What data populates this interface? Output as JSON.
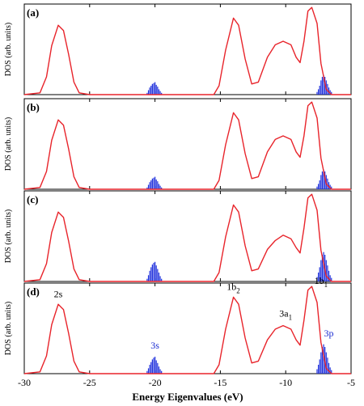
{
  "chart_data": {
    "type": "line",
    "title": "",
    "xlabel": "Energy Eigenvalues (eV)",
    "ylabel": "DOS (arb. units)",
    "xlim": [
      -30,
      -5
    ],
    "x_ticks": [
      "-30",
      "-25",
      "-20",
      "-15",
      "-10",
      "-5"
    ],
    "grid": false,
    "legend": "none",
    "colors": {
      "curve": "#e8242b",
      "bars": "#2233dd",
      "peak_label": "#000000",
      "orbital_label": "#1a2bd1"
    },
    "panels": [
      {
        "label": "(a)",
        "curve": [
          {
            "x": -30.0,
            "y": 0.0
          },
          {
            "x": -28.8,
            "y": 0.02
          },
          {
            "x": -28.3,
            "y": 0.2
          },
          {
            "x": -27.9,
            "y": 0.55
          },
          {
            "x": -27.4,
            "y": 0.78
          },
          {
            "x": -27.0,
            "y": 0.72
          },
          {
            "x": -26.6,
            "y": 0.45
          },
          {
            "x": -26.2,
            "y": 0.14
          },
          {
            "x": -25.8,
            "y": 0.02
          },
          {
            "x": -25.0,
            "y": 0.0
          },
          {
            "x": -15.5,
            "y": 0.0
          },
          {
            "x": -15.1,
            "y": 0.1
          },
          {
            "x": -14.6,
            "y": 0.5
          },
          {
            "x": -14.0,
            "y": 0.86
          },
          {
            "x": -13.6,
            "y": 0.78
          },
          {
            "x": -13.1,
            "y": 0.4
          },
          {
            "x": -12.6,
            "y": 0.12
          },
          {
            "x": -12.1,
            "y": 0.14
          },
          {
            "x": -11.4,
            "y": 0.42
          },
          {
            "x": -10.8,
            "y": 0.56
          },
          {
            "x": -10.2,
            "y": 0.6
          },
          {
            "x": -9.6,
            "y": 0.56
          },
          {
            "x": -9.2,
            "y": 0.42
          },
          {
            "x": -8.9,
            "y": 0.36
          },
          {
            "x": -8.6,
            "y": 0.6
          },
          {
            "x": -8.3,
            "y": 0.94
          },
          {
            "x": -8.0,
            "y": 0.98
          },
          {
            "x": -7.6,
            "y": 0.8
          },
          {
            "x": -7.3,
            "y": 0.35
          },
          {
            "x": -6.9,
            "y": 0.06
          },
          {
            "x": -6.5,
            "y": 0.0
          },
          {
            "x": -5.0,
            "y": 0.0
          }
        ],
        "bars": [
          {
            "x": -20.6,
            "y": 0.02
          },
          {
            "x": -20.5,
            "y": 0.05
          },
          {
            "x": -20.4,
            "y": 0.08
          },
          {
            "x": -20.3,
            "y": 0.1
          },
          {
            "x": -20.2,
            "y": 0.12
          },
          {
            "x": -20.1,
            "y": 0.13
          },
          {
            "x": -20.0,
            "y": 0.14
          },
          {
            "x": -19.9,
            "y": 0.11
          },
          {
            "x": -19.8,
            "y": 0.09
          },
          {
            "x": -19.7,
            "y": 0.06
          },
          {
            "x": -19.6,
            "y": 0.04
          },
          {
            "x": -19.5,
            "y": 0.02
          },
          {
            "x": -7.6,
            "y": 0.03
          },
          {
            "x": -7.5,
            "y": 0.06
          },
          {
            "x": -7.4,
            "y": 0.1
          },
          {
            "x": -7.3,
            "y": 0.16
          },
          {
            "x": -7.2,
            "y": 0.2
          },
          {
            "x": -7.1,
            "y": 0.22
          },
          {
            "x": -7.0,
            "y": 0.2
          },
          {
            "x": -6.9,
            "y": 0.16
          },
          {
            "x": -6.8,
            "y": 0.12
          },
          {
            "x": -6.7,
            "y": 0.08
          },
          {
            "x": -6.6,
            "y": 0.05
          },
          {
            "x": -6.5,
            "y": 0.03
          }
        ]
      },
      {
        "label": "(b)",
        "curve": [
          {
            "x": -30.0,
            "y": 0.0
          },
          {
            "x": -28.8,
            "y": 0.02
          },
          {
            "x": -28.3,
            "y": 0.2
          },
          {
            "x": -27.9,
            "y": 0.55
          },
          {
            "x": -27.4,
            "y": 0.78
          },
          {
            "x": -27.0,
            "y": 0.72
          },
          {
            "x": -26.6,
            "y": 0.45
          },
          {
            "x": -26.2,
            "y": 0.14
          },
          {
            "x": -25.8,
            "y": 0.02
          },
          {
            "x": -25.0,
            "y": 0.0
          },
          {
            "x": -15.5,
            "y": 0.0
          },
          {
            "x": -15.1,
            "y": 0.1
          },
          {
            "x": -14.6,
            "y": 0.5
          },
          {
            "x": -14.0,
            "y": 0.86
          },
          {
            "x": -13.6,
            "y": 0.78
          },
          {
            "x": -13.1,
            "y": 0.4
          },
          {
            "x": -12.6,
            "y": 0.12
          },
          {
            "x": -12.1,
            "y": 0.14
          },
          {
            "x": -11.4,
            "y": 0.42
          },
          {
            "x": -10.8,
            "y": 0.56
          },
          {
            "x": -10.2,
            "y": 0.6
          },
          {
            "x": -9.6,
            "y": 0.56
          },
          {
            "x": -9.2,
            "y": 0.42
          },
          {
            "x": -8.9,
            "y": 0.36
          },
          {
            "x": -8.6,
            "y": 0.6
          },
          {
            "x": -8.3,
            "y": 0.94
          },
          {
            "x": -8.0,
            "y": 0.98
          },
          {
            "x": -7.6,
            "y": 0.8
          },
          {
            "x": -7.3,
            "y": 0.35
          },
          {
            "x": -6.9,
            "y": 0.06
          },
          {
            "x": -6.5,
            "y": 0.0
          },
          {
            "x": -5.0,
            "y": 0.0
          }
        ],
        "bars": [
          {
            "x": -20.6,
            "y": 0.02
          },
          {
            "x": -20.5,
            "y": 0.05
          },
          {
            "x": -20.4,
            "y": 0.08
          },
          {
            "x": -20.3,
            "y": 0.1
          },
          {
            "x": -20.2,
            "y": 0.12
          },
          {
            "x": -20.1,
            "y": 0.13
          },
          {
            "x": -20.0,
            "y": 0.14
          },
          {
            "x": -19.9,
            "y": 0.11
          },
          {
            "x": -19.8,
            "y": 0.09
          },
          {
            "x": -19.7,
            "y": 0.06
          },
          {
            "x": -19.6,
            "y": 0.04
          },
          {
            "x": -19.5,
            "y": 0.02
          },
          {
            "x": -7.6,
            "y": 0.03
          },
          {
            "x": -7.5,
            "y": 0.06
          },
          {
            "x": -7.4,
            "y": 0.1
          },
          {
            "x": -7.3,
            "y": 0.16
          },
          {
            "x": -7.2,
            "y": 0.2
          },
          {
            "x": -7.1,
            "y": 0.22
          },
          {
            "x": -7.0,
            "y": 0.2
          },
          {
            "x": -6.9,
            "y": 0.16
          },
          {
            "x": -6.8,
            "y": 0.12
          },
          {
            "x": -6.7,
            "y": 0.08
          },
          {
            "x": -6.6,
            "y": 0.05
          },
          {
            "x": -6.5,
            "y": 0.03
          }
        ]
      },
      {
        "label": "(c)",
        "curve": [
          {
            "x": -30.0,
            "y": 0.0
          },
          {
            "x": -28.8,
            "y": 0.02
          },
          {
            "x": -28.3,
            "y": 0.2
          },
          {
            "x": -27.9,
            "y": 0.55
          },
          {
            "x": -27.4,
            "y": 0.78
          },
          {
            "x": -27.0,
            "y": 0.72
          },
          {
            "x": -26.6,
            "y": 0.45
          },
          {
            "x": -26.2,
            "y": 0.14
          },
          {
            "x": -25.8,
            "y": 0.02
          },
          {
            "x": -25.0,
            "y": 0.0
          },
          {
            "x": -15.5,
            "y": 0.0
          },
          {
            "x": -15.1,
            "y": 0.1
          },
          {
            "x": -14.6,
            "y": 0.5
          },
          {
            "x": -14.0,
            "y": 0.86
          },
          {
            "x": -13.6,
            "y": 0.78
          },
          {
            "x": -13.1,
            "y": 0.4
          },
          {
            "x": -12.6,
            "y": 0.12
          },
          {
            "x": -12.1,
            "y": 0.14
          },
          {
            "x": -11.4,
            "y": 0.36
          },
          {
            "x": -10.8,
            "y": 0.46
          },
          {
            "x": -10.2,
            "y": 0.52
          },
          {
            "x": -9.6,
            "y": 0.48
          },
          {
            "x": -9.2,
            "y": 0.38
          },
          {
            "x": -8.9,
            "y": 0.32
          },
          {
            "x": -8.6,
            "y": 0.6
          },
          {
            "x": -8.3,
            "y": 0.94
          },
          {
            "x": -8.0,
            "y": 0.98
          },
          {
            "x": -7.6,
            "y": 0.8
          },
          {
            "x": -7.3,
            "y": 0.35
          },
          {
            "x": -6.9,
            "y": 0.06
          },
          {
            "x": -6.5,
            "y": 0.0
          },
          {
            "x": -5.0,
            "y": 0.0
          }
        ],
        "bars": [
          {
            "x": -20.6,
            "y": 0.03
          },
          {
            "x": -20.5,
            "y": 0.07
          },
          {
            "x": -20.4,
            "y": 0.12
          },
          {
            "x": -20.3,
            "y": 0.16
          },
          {
            "x": -20.2,
            "y": 0.19
          },
          {
            "x": -20.1,
            "y": 0.21
          },
          {
            "x": -20.0,
            "y": 0.22
          },
          {
            "x": -19.9,
            "y": 0.18
          },
          {
            "x": -19.8,
            "y": 0.14
          },
          {
            "x": -19.7,
            "y": 0.1
          },
          {
            "x": -19.6,
            "y": 0.06
          },
          {
            "x": -19.5,
            "y": 0.03
          },
          {
            "x": -7.6,
            "y": 0.05
          },
          {
            "x": -7.5,
            "y": 0.1
          },
          {
            "x": -7.4,
            "y": 0.16
          },
          {
            "x": -7.3,
            "y": 0.24
          },
          {
            "x": -7.2,
            "y": 0.3
          },
          {
            "x": -7.1,
            "y": 0.33
          },
          {
            "x": -7.0,
            "y": 0.3
          },
          {
            "x": -6.9,
            "y": 0.24
          },
          {
            "x": -6.8,
            "y": 0.18
          },
          {
            "x": -6.7,
            "y": 0.12
          },
          {
            "x": -6.6,
            "y": 0.07
          },
          {
            "x": -6.5,
            "y": 0.04
          }
        ]
      },
      {
        "label": "(d)",
        "curve": [
          {
            "x": -30.0,
            "y": 0.0
          },
          {
            "x": -28.8,
            "y": 0.02
          },
          {
            "x": -28.3,
            "y": 0.2
          },
          {
            "x": -27.9,
            "y": 0.55
          },
          {
            "x": -27.4,
            "y": 0.78
          },
          {
            "x": -27.0,
            "y": 0.72
          },
          {
            "x": -26.6,
            "y": 0.45
          },
          {
            "x": -26.2,
            "y": 0.14
          },
          {
            "x": -25.8,
            "y": 0.02
          },
          {
            "x": -25.0,
            "y": 0.0
          },
          {
            "x": -15.5,
            "y": 0.0
          },
          {
            "x": -15.1,
            "y": 0.1
          },
          {
            "x": -14.6,
            "y": 0.5
          },
          {
            "x": -14.0,
            "y": 0.86
          },
          {
            "x": -13.6,
            "y": 0.78
          },
          {
            "x": -13.1,
            "y": 0.4
          },
          {
            "x": -12.6,
            "y": 0.12
          },
          {
            "x": -12.1,
            "y": 0.14
          },
          {
            "x": -11.4,
            "y": 0.38
          },
          {
            "x": -10.8,
            "y": 0.5
          },
          {
            "x": -10.2,
            "y": 0.54
          },
          {
            "x": -9.6,
            "y": 0.5
          },
          {
            "x": -9.2,
            "y": 0.38
          },
          {
            "x": -8.9,
            "y": 0.32
          },
          {
            "x": -8.6,
            "y": 0.6
          },
          {
            "x": -8.3,
            "y": 0.94
          },
          {
            "x": -8.0,
            "y": 0.98
          },
          {
            "x": -7.6,
            "y": 0.8
          },
          {
            "x": -7.3,
            "y": 0.35
          },
          {
            "x": -6.9,
            "y": 0.06
          },
          {
            "x": -6.5,
            "y": 0.0
          },
          {
            "x": -5.0,
            "y": 0.0
          }
        ],
        "bars": [
          {
            "x": -20.6,
            "y": 0.03
          },
          {
            "x": -20.5,
            "y": 0.06
          },
          {
            "x": -20.4,
            "y": 0.1
          },
          {
            "x": -20.3,
            "y": 0.13
          },
          {
            "x": -20.2,
            "y": 0.16
          },
          {
            "x": -20.1,
            "y": 0.18
          },
          {
            "x": -20.0,
            "y": 0.19
          },
          {
            "x": -19.9,
            "y": 0.15
          },
          {
            "x": -19.8,
            "y": 0.12
          },
          {
            "x": -19.7,
            "y": 0.08
          },
          {
            "x": -19.6,
            "y": 0.05
          },
          {
            "x": -19.5,
            "y": 0.03
          },
          {
            "x": -7.6,
            "y": 0.05
          },
          {
            "x": -7.5,
            "y": 0.1
          },
          {
            "x": -7.4,
            "y": 0.16
          },
          {
            "x": -7.3,
            "y": 0.24
          },
          {
            "x": -7.2,
            "y": 0.3
          },
          {
            "x": -7.1,
            "y": 0.33
          },
          {
            "x": -7.0,
            "y": 0.3
          },
          {
            "x": -6.9,
            "y": 0.24
          },
          {
            "x": -6.8,
            "y": 0.18
          },
          {
            "x": -6.7,
            "y": 0.12
          },
          {
            "x": -6.6,
            "y": 0.07
          },
          {
            "x": -6.5,
            "y": 0.04
          }
        ],
        "annotations": [
          {
            "text": "2s",
            "sub": "",
            "x": -27.4,
            "y": 0.86,
            "kind": "peak"
          },
          {
            "text": "1b",
            "sub": "2",
            "x": -14.0,
            "y": 0.94,
            "kind": "peak"
          },
          {
            "text": "3a",
            "sub": "1",
            "x": -10.0,
            "y": 0.64,
            "kind": "peak"
          },
          {
            "text": "1b",
            "sub": "1",
            "x": -7.3,
            "y": 1.01,
            "kind": "peak"
          },
          {
            "text": "3s",
            "sub": "",
            "x": -20.0,
            "y": 0.28,
            "kind": "orbital"
          },
          {
            "text": "3p",
            "sub": "",
            "x": -6.7,
            "y": 0.42,
            "kind": "orbital"
          }
        ]
      }
    ]
  }
}
